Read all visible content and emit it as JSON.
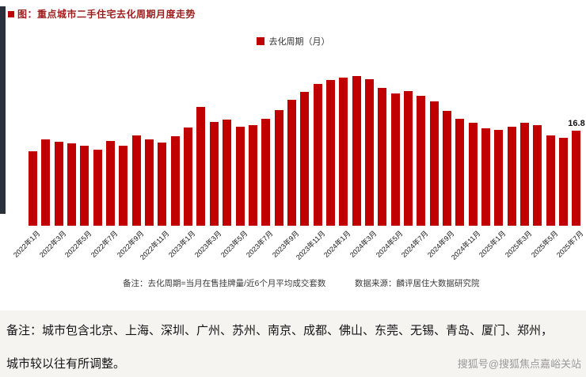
{
  "page": {
    "title": "图：重点城市二手住宅去化周期月度走势",
    "footer_note_line1": "备注：城市包含北京、上海、深圳、广州、苏州、南京、成都、佛山、东莞、无锡、青岛、厦门、郑州，",
    "footer_note_line2": "城市较以往有所调整。",
    "watermark": "搜狐号@搜狐焦点嘉峪关站"
  },
  "chart_notes": {
    "formula": "备注：去化周期=当月在售挂牌量/近6个月平均成交套数",
    "source": "数据来源：麟评居住大数据研究院"
  },
  "colors": {
    "bar": "#C00000",
    "legend_swatch": "#C00000",
    "title": "#9C1D1D",
    "accent_strip": "#2B313C",
    "footer_bg": "#F5F4F1"
  },
  "chart_data": {
    "type": "bar",
    "title": "重点城市二手住宅去化周期月度走势",
    "legend": [
      "去化周期（月）"
    ],
    "legend_position": "top",
    "grid": false,
    "y_axis": "hidden",
    "ylim": [
      0,
      28
    ],
    "tick_interval": 2,
    "categories": [
      "2022年1月",
      "2022年2月",
      "2022年3月",
      "2022年4月",
      "2022年5月",
      "2022年6月",
      "2022年7月",
      "2022年8月",
      "2022年9月",
      "2022年10月",
      "2022年11月",
      "2022年12月",
      "2023年1月",
      "2023年2月",
      "2023年3月",
      "2023年4月",
      "2023年5月",
      "2023年6月",
      "2023年7月",
      "2023年8月",
      "2023年9月",
      "2023年10月",
      "2023年11月",
      "2023年12月",
      "2024年1月",
      "2024年2月",
      "2024年3月",
      "2024年4月",
      "2024年5月",
      "2024年6月",
      "2024年7月",
      "2024年8月",
      "2024年9月",
      "2024年10月",
      "2024年11月",
      "2024年12月",
      "2025年1月",
      "2025年2月",
      "2025年3月",
      "2025年4月",
      "2025年5月",
      "2025年6月",
      "2025年7月"
    ],
    "values": [
      13.2,
      15.3,
      14.9,
      14.6,
      14.2,
      13.4,
      15.0,
      14.1,
      16.0,
      15.3,
      14.7,
      15.8,
      17.4,
      21.0,
      18.3,
      18.8,
      17.5,
      17.8,
      18.9,
      20.5,
      22.3,
      23.7,
      25.1,
      25.8,
      26.2,
      26.5,
      25.9,
      24.4,
      23.4,
      23.8,
      23.0,
      22.0,
      20.3,
      18.9,
      18.2,
      17.2,
      16.9,
      17.5,
      18.2,
      17.8,
      15.9,
      15.5,
      16.8
    ],
    "data_label": {
      "category": "2025年7月",
      "text": "16.8",
      "value": 16.8
    }
  }
}
